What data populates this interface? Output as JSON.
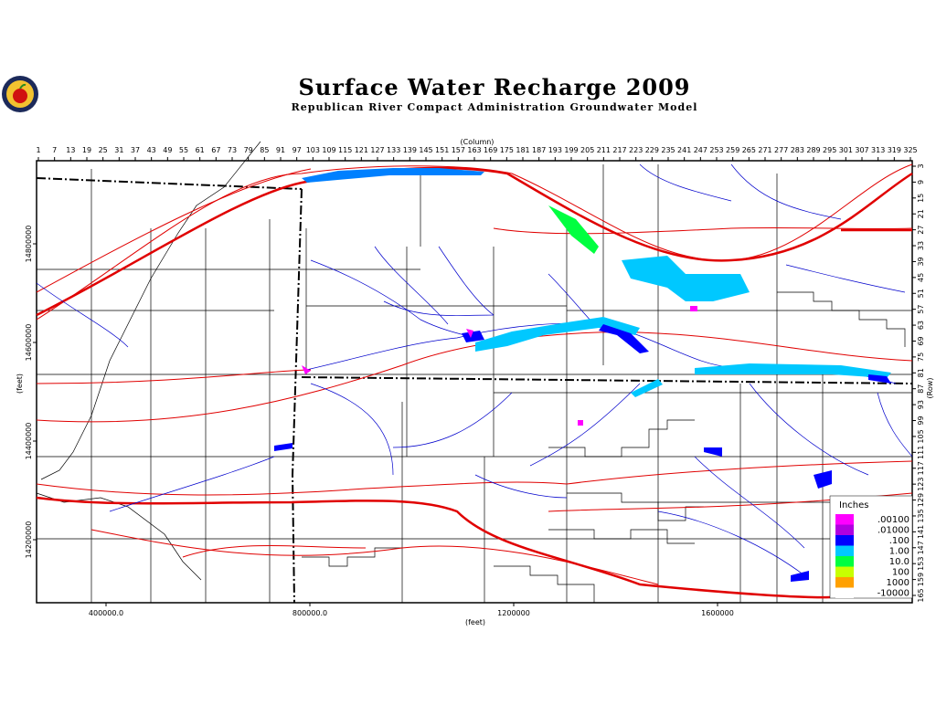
{
  "header": {
    "title": "Surface Water Recharge 2009",
    "subtitle": "Republican River Compact Administration Groundwater Model"
  },
  "map": {
    "column_axis": {
      "label": "(Column)",
      "ticks": [
        1,
        7,
        13,
        19,
        25,
        31,
        37,
        43,
        49,
        55,
        61,
        67,
        73,
        79,
        85,
        91,
        97,
        103,
        109,
        115,
        121,
        127,
        133,
        139,
        145,
        151,
        157,
        163,
        169,
        175,
        181,
        187,
        193,
        199,
        205,
        211,
        217,
        223,
        229,
        235,
        241,
        247,
        253,
        259,
        265,
        271,
        277,
        283,
        289,
        295,
        301,
        307,
        313,
        319,
        325
      ],
      "lim": [
        1,
        325
      ]
    },
    "row_axis": {
      "label": "(Row)",
      "ticks": [
        3,
        9,
        15,
        21,
        27,
        33,
        39,
        45,
        51,
        57,
        63,
        69,
        75,
        81,
        87,
        93,
        99,
        105,
        111,
        117,
        123,
        129,
        135,
        141,
        147,
        153,
        159,
        165
      ],
      "lim": [
        3,
        165
      ]
    },
    "x_feet_axis": {
      "label": "(feet)",
      "ticks": [
        {
          "value": 400000,
          "label": "400000.0"
        },
        {
          "value": 800000,
          "label": "800000.0"
        },
        1200000,
        1600000
      ]
    },
    "y_feet_axis": {
      "label": "(feet)",
      "ticks": [
        14800000,
        14600000,
        14400000,
        14200000
      ]
    },
    "legend": {
      "title": "Inches",
      "items": [
        {
          "label": ".00100",
          "color": "#ff00ff"
        },
        {
          "label": ".01000",
          "color": "#b000e0"
        },
        {
          "label": ".100",
          "color": "#0000ff"
        },
        {
          "label": "1.00",
          "color": "#00c8ff"
        },
        {
          "label": "10.0",
          "color": "#00ff40"
        },
        {
          "label": "100",
          "color": "#c8ff00"
        },
        {
          "label": "1000",
          "color": "#ffa000"
        },
        {
          "label": "-10000",
          "color": "#ffffff"
        }
      ]
    }
  }
}
